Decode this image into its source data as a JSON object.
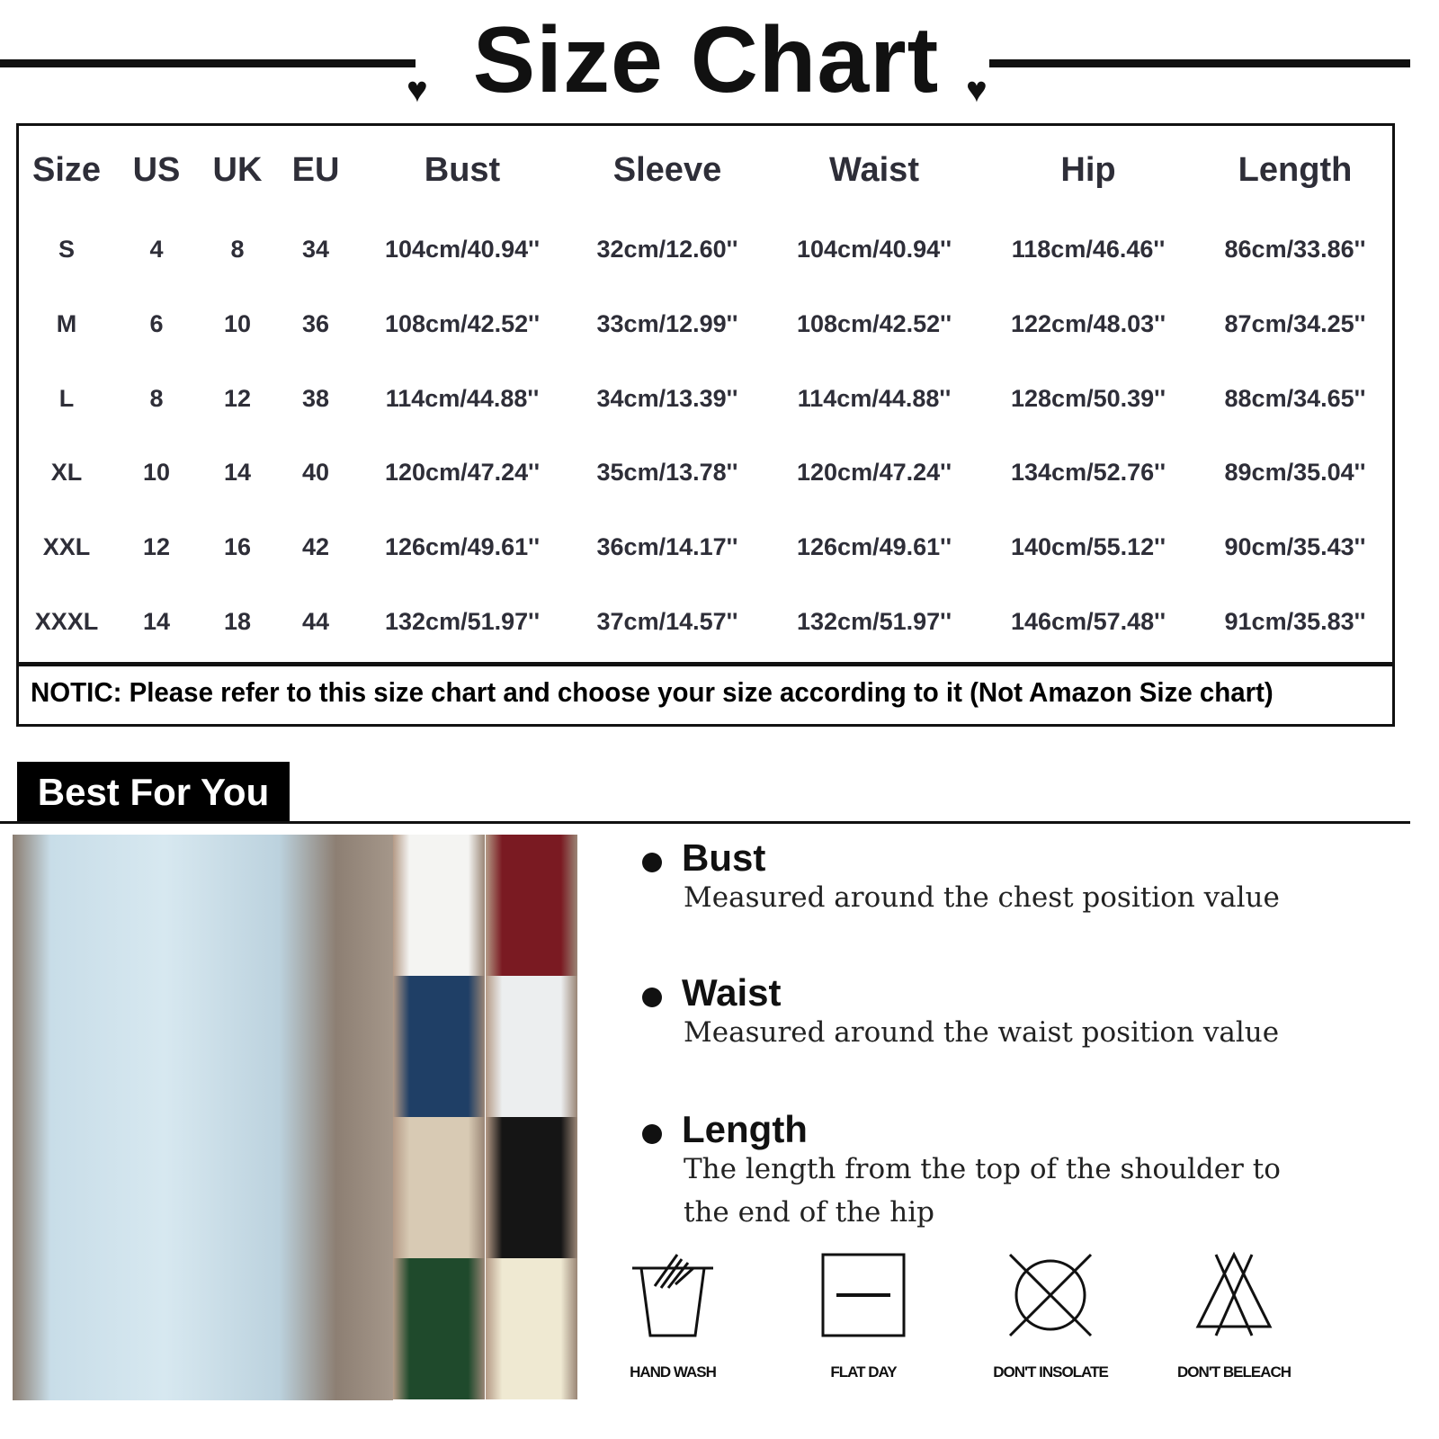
{
  "title": "Size Chart",
  "table": {
    "headers": [
      "Size",
      "US",
      "UK",
      "EU",
      "Bust",
      "Sleeve",
      "Waist",
      "Hip",
      "Length"
    ],
    "rows": [
      [
        "S",
        "4",
        "8",
        "34",
        "104cm/40.94''",
        "32cm/12.60''",
        "104cm/40.94''",
        "118cm/46.46''",
        "86cm/33.86''"
      ],
      [
        "M",
        "6",
        "10",
        "36",
        "108cm/42.52''",
        "33cm/12.99''",
        "108cm/42.52''",
        "122cm/48.03''",
        "87cm/34.25''"
      ],
      [
        "L",
        "8",
        "12",
        "38",
        "114cm/44.88''",
        "34cm/13.39''",
        "114cm/44.88''",
        "128cm/50.39''",
        "88cm/34.65''"
      ],
      [
        "XL",
        "10",
        "14",
        "40",
        "120cm/47.24''",
        "35cm/13.78''",
        "120cm/47.24''",
        "134cm/52.76''",
        "89cm/35.04''"
      ],
      [
        "XXL",
        "12",
        "16",
        "42",
        "126cm/49.61''",
        "36cm/14.17''",
        "126cm/49.61''",
        "140cm/55.12''",
        "90cm/35.43''"
      ],
      [
        "XXXL",
        "14",
        "18",
        "44",
        "132cm/51.97''",
        "37cm/14.57''",
        "132cm/51.97''",
        "146cm/57.48''",
        "91cm/35.83''"
      ]
    ],
    "notice": "NOTIC: Please refer to this size chart and choose your size according to it (Not Amazon Size chart)"
  },
  "best_for_you": "Best For You",
  "colors": [
    "#f4f4f2",
    "#7a1a22",
    "#1f3f66",
    "#eceeef",
    "#d8cab4",
    "#151515",
    "#1f4a2c",
    "#efe9d2"
  ],
  "measurements": [
    {
      "name": "Bust",
      "desc": [
        "Measured around the chest position value"
      ]
    },
    {
      "name": "Waist",
      "desc": [
        "Measured around the waist position value"
      ]
    },
    {
      "name": "Length",
      "desc": [
        "The length from the top of the shoulder to",
        "the end of the hip"
      ]
    }
  ],
  "care": [
    {
      "icon": "hand-wash-icon",
      "label": "HAND WASH"
    },
    {
      "icon": "flat-dry-icon",
      "label": "FLAT DAY"
    },
    {
      "icon": "do-not-tumble-icon",
      "label": "DON'T INSOLATE"
    },
    {
      "icon": "do-not-bleach-icon",
      "label": "DON'T BELEACH"
    }
  ]
}
